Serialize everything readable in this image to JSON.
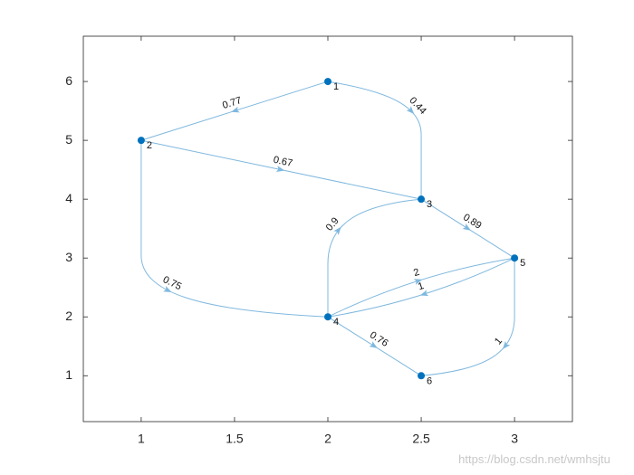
{
  "chart_data": {
    "type": "digraph",
    "xlim": [
      0.69,
      3.31
    ],
    "ylim": [
      0.22,
      6.77
    ],
    "xticks": [
      1,
      1.5,
      2,
      2.5,
      3
    ],
    "yticks": [
      1,
      2,
      3,
      4,
      5,
      6
    ],
    "node_color": "#0072bd",
    "edge_color": "#7fb8de",
    "nodes": [
      {
        "label": "1",
        "x": 2,
        "y": 6
      },
      {
        "label": "2",
        "x": 1,
        "y": 5
      },
      {
        "label": "3",
        "x": 2.5,
        "y": 4
      },
      {
        "label": "4",
        "x": 2,
        "y": 2
      },
      {
        "label": "5",
        "x": 3,
        "y": 3
      },
      {
        "label": "6",
        "x": 2.5,
        "y": 1
      }
    ],
    "edges": [
      {
        "source": "1",
        "target": "2",
        "weight": 0.77
      },
      {
        "source": "1",
        "target": "3",
        "weight": 0.44
      },
      {
        "source": "2",
        "target": "3",
        "weight": 0.67
      },
      {
        "source": "2",
        "target": "4",
        "weight": 0.75
      },
      {
        "source": "3",
        "target": "5",
        "weight": 0.89
      },
      {
        "source": "4",
        "target": "3",
        "weight": 0.9
      },
      {
        "source": "4",
        "target": "5",
        "weight": 2
      },
      {
        "source": "5",
        "target": "4",
        "weight": 1
      },
      {
        "source": "5",
        "target": "6",
        "weight": 1
      },
      {
        "source": "4",
        "target": "6",
        "weight": 0.76
      }
    ],
    "watermark": "https://blog.csdn.net/wmhsjtu"
  }
}
